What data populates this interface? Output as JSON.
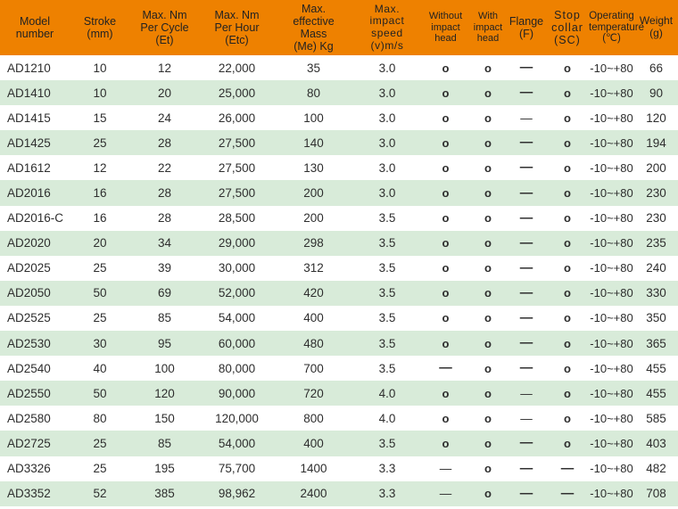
{
  "colors": {
    "header_bg": "#ee8100",
    "row_even_bg": "#d8ebd9",
    "row_odd_bg": "#ffffff",
    "text": "#2e2e2e",
    "header_text": "#222222"
  },
  "symbols": {
    "available": "o",
    "not_available": "—"
  },
  "table": {
    "columns": [
      {
        "id": "model",
        "label": "Model\nnumber"
      },
      {
        "id": "stroke",
        "label": "Stroke\n(mm)"
      },
      {
        "id": "et",
        "label": "Max. Nm\nPer Cycle\n(Et)"
      },
      {
        "id": "etc",
        "label": "Max. Nm\nPer Hour\n(Etc)"
      },
      {
        "id": "me",
        "label": "Max.\neffective\nMass\n(Me) Kg"
      },
      {
        "id": "v",
        "label": "Max.\nimpact\nspeed\n(v)m/s"
      },
      {
        "id": "without",
        "label": "Without\nimpact\nhead"
      },
      {
        "id": "with",
        "label": "With\nimpact\nhead"
      },
      {
        "id": "flange",
        "label": "Flange\n(F)"
      },
      {
        "id": "sc",
        "label": "Stop\ncollar\n(SC)"
      },
      {
        "id": "temp",
        "label": "Operating\ntemperature\n(℃)"
      },
      {
        "id": "weight",
        "label": "Weight\n(g)"
      }
    ],
    "rows": [
      {
        "cells": [
          "AD1210",
          "10",
          "12",
          "22,000",
          "35",
          "3.0",
          "o",
          "o",
          "—",
          "o",
          "-10~+80",
          "66"
        ],
        "thin_dash_cols": []
      },
      {
        "cells": [
          "AD1410",
          "10",
          "20",
          "25,000",
          "80",
          "3.0",
          "o",
          "o",
          "—",
          "o",
          "-10~+80",
          "90"
        ],
        "thin_dash_cols": []
      },
      {
        "cells": [
          "AD1415",
          "15",
          "24",
          "26,000",
          "100",
          "3.0",
          "o",
          "o",
          "—",
          "o",
          "-10~+80",
          "120"
        ],
        "thin_dash_cols": [
          8
        ]
      },
      {
        "cells": [
          "AD1425",
          "25",
          "28",
          "27,500",
          "140",
          "3.0",
          "o",
          "o",
          "—",
          "o",
          "-10~+80",
          "194"
        ],
        "thin_dash_cols": []
      },
      {
        "cells": [
          "AD1612",
          "12",
          "22",
          "27,500",
          "130",
          "3.0",
          "o",
          "o",
          "—",
          "o",
          "-10~+80",
          "200"
        ],
        "thin_dash_cols": []
      },
      {
        "cells": [
          "AD2016",
          "16",
          "28",
          "27,500",
          "200",
          "3.0",
          "o",
          "o",
          "—",
          "o",
          "-10~+80",
          "230"
        ],
        "thin_dash_cols": []
      },
      {
        "cells": [
          "AD2016-C",
          "16",
          "28",
          "28,500",
          "200",
          "3.5",
          "o",
          "o",
          "—",
          "o",
          "-10~+80",
          "230"
        ],
        "thin_dash_cols": []
      },
      {
        "cells": [
          "AD2020",
          "20",
          "34",
          "29,000",
          "298",
          "3.5",
          "o",
          "o",
          "—",
          "o",
          "-10~+80",
          "235"
        ],
        "thin_dash_cols": []
      },
      {
        "cells": [
          "AD2025",
          "25",
          "39",
          "30,000",
          "312",
          "3.5",
          "o",
          "o",
          "—",
          "o",
          "-10~+80",
          "240"
        ],
        "thin_dash_cols": []
      },
      {
        "cells": [
          "AD2050",
          "50",
          "69",
          "52,000",
          "420",
          "3.5",
          "o",
          "o",
          "—",
          "o",
          "-10~+80",
          "330"
        ],
        "thin_dash_cols": []
      },
      {
        "cells": [
          "AD2525",
          "25",
          "85",
          "54,000",
          "400",
          "3.5",
          "o",
          "o",
          "—",
          "o",
          "-10~+80",
          "350"
        ],
        "thin_dash_cols": []
      },
      {
        "cells": [
          "AD2530",
          "30",
          "95",
          "60,000",
          "480",
          "3.5",
          "o",
          "o",
          "—",
          "o",
          "-10~+80",
          "365"
        ],
        "thin_dash_cols": []
      },
      {
        "cells": [
          "AD2540",
          "40",
          "100",
          "80,000",
          "700",
          "3.5",
          "—",
          "o",
          "—",
          "o",
          "-10~+80",
          "455"
        ],
        "thin_dash_cols": []
      },
      {
        "cells": [
          "AD2550",
          "50",
          "120",
          "90,000",
          "720",
          "4.0",
          "o",
          "o",
          "—",
          "o",
          "-10~+80",
          "455"
        ],
        "thin_dash_cols": [
          8
        ]
      },
      {
        "cells": [
          "AD2580",
          "80",
          "150",
          "120,000",
          "800",
          "4.0",
          "o",
          "o",
          "—",
          "o",
          "-10~+80",
          "585"
        ],
        "thin_dash_cols": [
          8
        ]
      },
      {
        "cells": [
          "AD2725",
          "25",
          "85",
          "54,000",
          "400",
          "3.5",
          "o",
          "o",
          "—",
          "o",
          "-10~+80",
          "403"
        ],
        "thin_dash_cols": []
      },
      {
        "cells": [
          "AD3326",
          "25",
          "195",
          "75,700",
          "1400",
          "3.3",
          "—",
          "o",
          "—",
          "—",
          "-10~+80",
          "482"
        ],
        "thin_dash_cols": [
          6
        ]
      },
      {
        "cells": [
          "AD3352",
          "52",
          "385",
          "98,962",
          "2400",
          "3.3",
          "—",
          "o",
          "—",
          "—",
          "-10~+80",
          "708"
        ],
        "thin_dash_cols": [
          6
        ]
      }
    ]
  }
}
